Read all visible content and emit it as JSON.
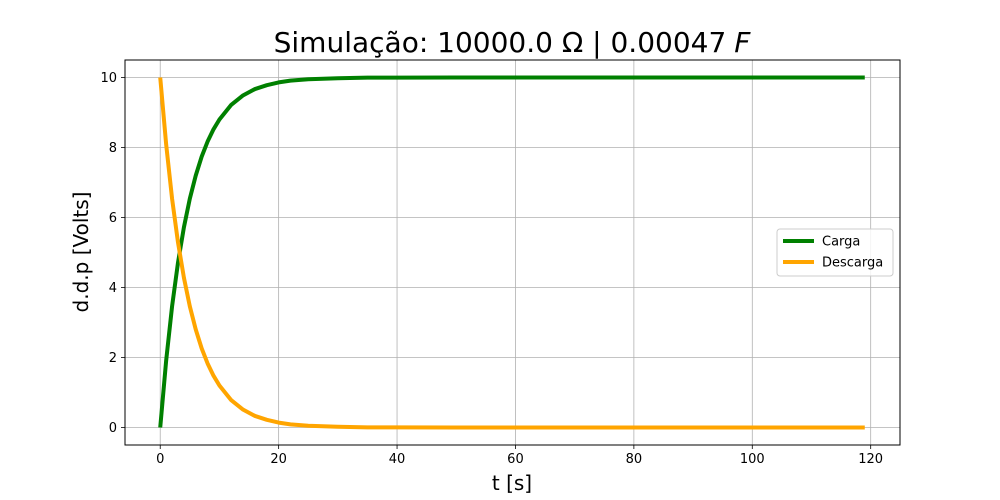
{
  "chart_data": {
    "type": "line",
    "title": "Simulação: 10000.0 Ω | 0.00047",
    "title_unit": "F",
    "xlabel": "t [s]",
    "ylabel": "d.d.p [Volts]",
    "xlim": [
      -5.95,
      124.95
    ],
    "ylim": [
      -0.5,
      10.5
    ],
    "xticks": [
      0,
      20,
      40,
      60,
      80,
      100,
      120
    ],
    "yticks": [
      0,
      2,
      4,
      6,
      8,
      10
    ],
    "grid": true,
    "legend_position": "center-right",
    "x": [
      0,
      1,
      2,
      3,
      4,
      5,
      6,
      7,
      8,
      9,
      10,
      12,
      14,
      16,
      18,
      20,
      22,
      25,
      30,
      35,
      40,
      50,
      60,
      70,
      80,
      90,
      100,
      110,
      119
    ],
    "series": [
      {
        "name": "Carga",
        "color": "#008000",
        "values": [
          0,
          1.91,
          3.46,
          4.71,
          5.72,
          6.54,
          7.2,
          7.74,
          8.17,
          8.52,
          8.8,
          9.22,
          9.49,
          9.67,
          9.78,
          9.86,
          9.91,
          9.95,
          9.98,
          9.996,
          9.998,
          10,
          10,
          10,
          10,
          10,
          10,
          10,
          10
        ]
      },
      {
        "name": "Descarga",
        "color": "#ffa500",
        "values": [
          10,
          8.09,
          6.54,
          5.29,
          4.28,
          3.46,
          2.8,
          2.26,
          1.83,
          1.48,
          1.2,
          0.78,
          0.51,
          0.33,
          0.22,
          0.14,
          0.09,
          0.05,
          0.02,
          0.004,
          0.002,
          0,
          0,
          0,
          0,
          0,
          0,
          0,
          0
        ]
      }
    ]
  }
}
